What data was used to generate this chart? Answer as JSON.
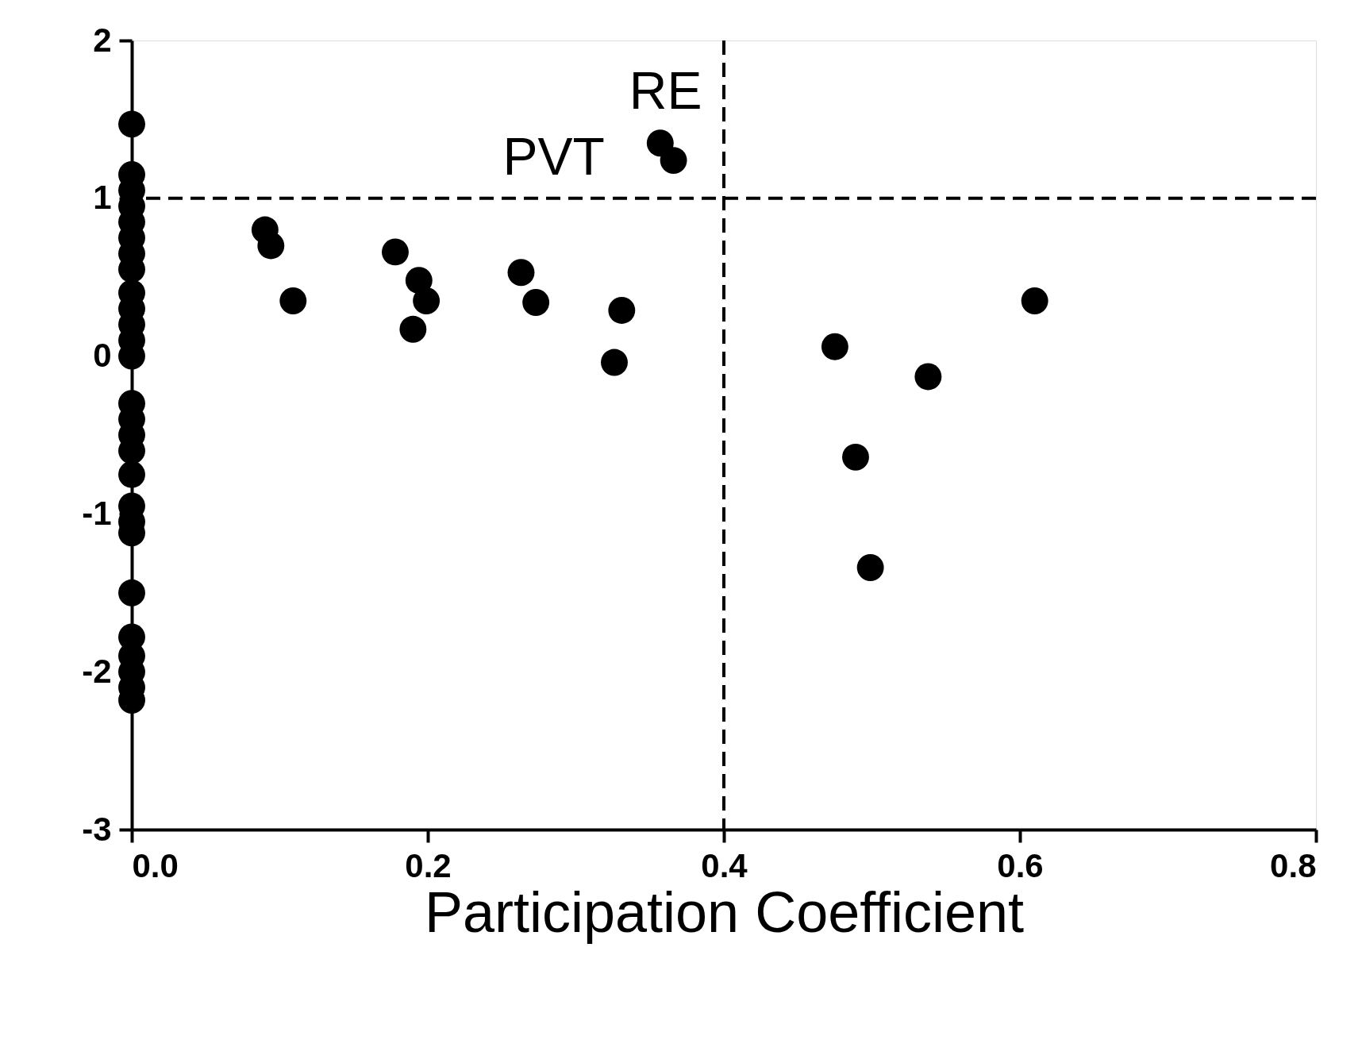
{
  "chart_data": {
    "type": "scatter",
    "xlabel": "Participation Coefficient",
    "x": [
      0,
      0,
      0,
      0,
      0,
      0,
      0,
      0,
      0,
      0,
      0,
      0,
      0,
      0,
      0,
      0,
      0,
      0,
      0,
      0,
      0,
      0,
      0,
      0,
      0,
      0,
      0,
      0.09,
      0.094,
      0.109,
      0.178,
      0.194,
      0.199,
      0.19,
      0.263,
      0.273,
      0.331,
      0.326,
      0.357,
      0.366,
      0.475,
      0.538,
      0.489,
      0.499,
      0.61
    ],
    "values": [
      1.47,
      1.15,
      1.05,
      0.95,
      0.85,
      0.75,
      0.65,
      0.55,
      0.4,
      0.3,
      0.2,
      0.1,
      0.0,
      -0.3,
      -0.4,
      -0.5,
      -0.6,
      -0.75,
      -0.95,
      -1.05,
      -1.12,
      -1.5,
      -1.78,
      -1.9,
      -2.0,
      -2.1,
      -2.18,
      0.8,
      0.7,
      0.35,
      0.66,
      0.48,
      0.35,
      0.17,
      0.53,
      0.34,
      0.29,
      -0.04,
      1.35,
      1.24,
      0.06,
      -0.13,
      -0.64,
      -1.34,
      0.35
    ],
    "color": "#000000",
    "marker": "circle",
    "xlim": [
      0,
      0.8
    ],
    "xticks": [
      {
        "value": 0,
        "label": "0.0"
      },
      {
        "value": 0.2,
        "label": "0.2"
      },
      {
        "value": 0.4,
        "label": "0.4"
      },
      {
        "value": 0.6,
        "label": "0.6"
      },
      {
        "value": 0.8,
        "label": "0.8"
      }
    ],
    "ylim": [
      -3,
      2
    ],
    "yticks": [
      -3,
      -2,
      -1,
      0,
      1,
      2
    ],
    "grid": false,
    "ref_lines": [
      {
        "axis": "y",
        "value": 1,
        "line_style": "dashed",
        "color": "#000000"
      },
      {
        "axis": "x",
        "value": 0.4,
        "line_style": "dashed",
        "color": "#000000"
      }
    ],
    "annotations": [
      {
        "text": "PVT",
        "x": 0.357,
        "y": 1.35
      },
      {
        "text": "RE",
        "x": 0.366,
        "y": 1.24
      }
    ]
  }
}
